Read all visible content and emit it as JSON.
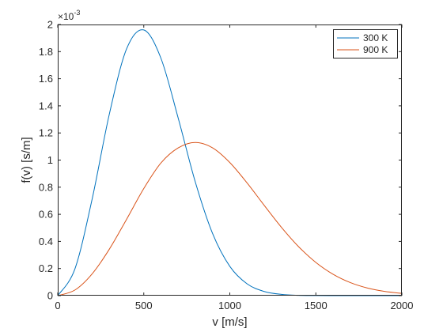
{
  "chart_data": {
    "type": "line",
    "title": "",
    "xlabel": "v [m/s]",
    "ylabel": "f(v) [s/m]",
    "xlim": [
      0,
      2000
    ],
    "ylim": [
      0,
      0.002
    ],
    "x_ticks": [
      0,
      500,
      1000,
      1500,
      2000
    ],
    "x_tick_labels": [
      "0",
      "500",
      "1000",
      "1500",
      "2000"
    ],
    "y_ticks": [
      0,
      0.0002,
      0.0004,
      0.0006,
      0.0008,
      0.001,
      0.0012,
      0.0014,
      0.0016,
      0.0018,
      0.002
    ],
    "y_tick_labels": [
      "0",
      "0.2",
      "0.4",
      "0.6",
      "0.8",
      "1",
      "1.2",
      "1.4",
      "1.6",
      "1.8",
      "2"
    ],
    "y_exponent": {
      "base": "×10",
      "power": "-3"
    },
    "grid": false,
    "legend": {
      "placement": "top-right"
    },
    "x": [
      0,
      100,
      200,
      300,
      400,
      500,
      600,
      700,
      800,
      900,
      1000,
      1100,
      1200,
      1300,
      1400,
      1500,
      1600,
      1700,
      1800,
      1900,
      2000
    ],
    "series": [
      {
        "name": "300 K",
        "color": "#0072bd",
        "values": [
          0,
          0.000198,
          0.000713,
          0.00134,
          0.00182,
          0.00196,
          0.00175,
          0.00131,
          0.000836,
          0.000458,
          0.000216,
          8.74e-05,
          3.05e-05,
          9.2e-06,
          2.4e-06,
          5e-07,
          1e-07,
          0,
          0,
          0,
          0
        ]
      },
      {
        "name": "900 K",
        "color": "#d95319",
        "values": [
          0,
          4.15e-05,
          0.000161,
          0.000343,
          0.000563,
          0.00079,
          0.000979,
          0.00109,
          0.00113,
          0.00109,
          0.000982,
          0.000832,
          0.000666,
          0.000504,
          0.000361,
          0.000245,
          0.000158,
          9.66e-05,
          5.61e-05,
          3.1e-05,
          1.63e-05
        ]
      }
    ]
  }
}
